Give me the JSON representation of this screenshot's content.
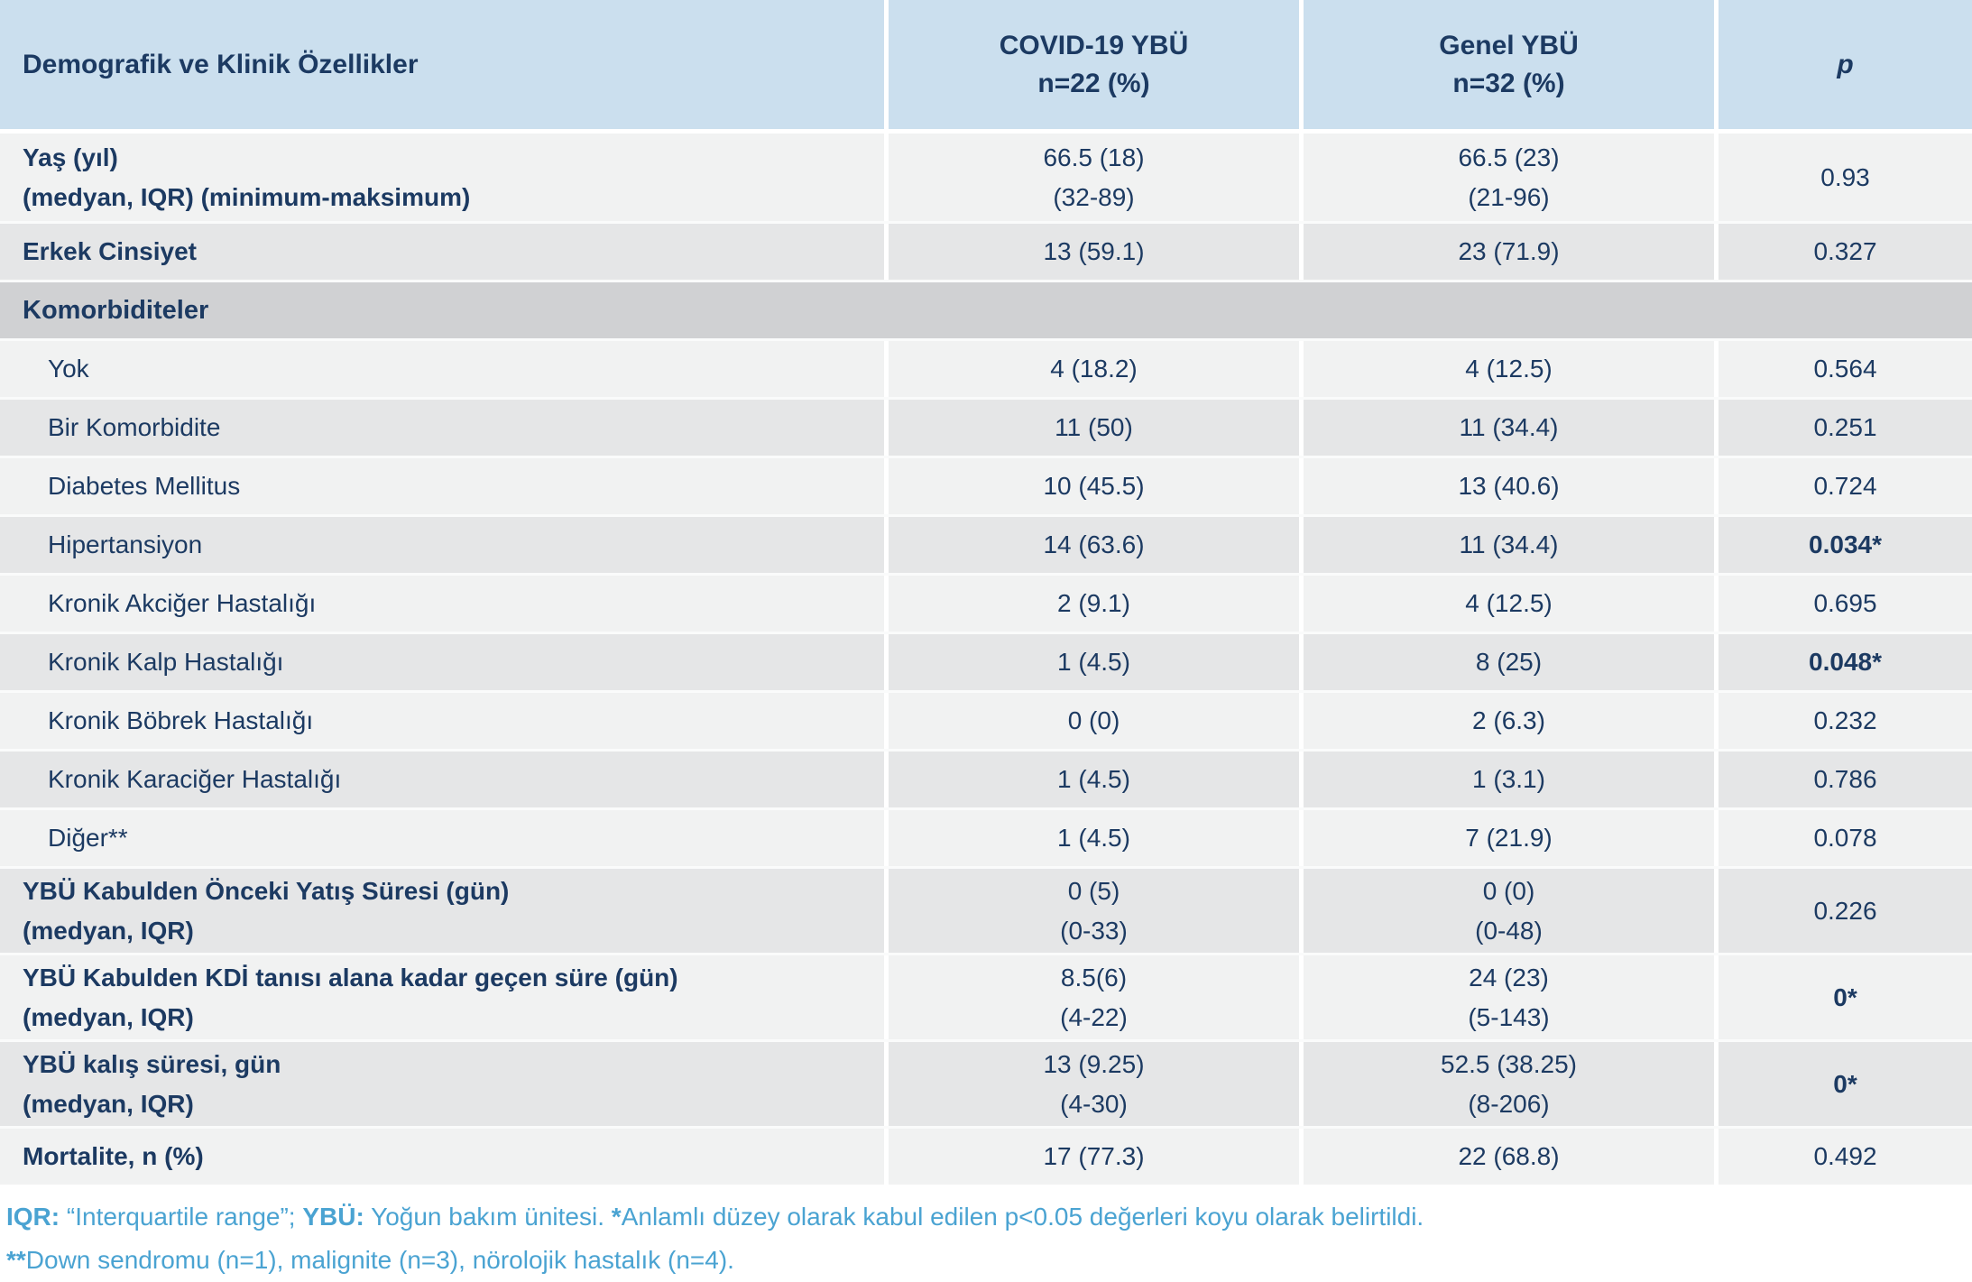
{
  "header": {
    "col1": "Demografik ve Klinik Özellikler",
    "col2_lines": [
      "COVID-19 YBÜ",
      "n=22 (%)"
    ],
    "col3_lines": [
      "Genel YBÜ",
      "n=32 (%)"
    ],
    "col4": "p"
  },
  "rows": [
    {
      "label": [
        "Yaş (yıl)",
        "(medyan, IQR) (minimum-maksimum)"
      ],
      "bold_label": true,
      "indent": false,
      "tall": true,
      "covid": [
        "66.5 (18)",
        "(32-89)"
      ],
      "genel": [
        "66.5 (23)",
        "(21-96)"
      ],
      "p": "0.93",
      "p_bold": false,
      "shade": "light"
    },
    {
      "label": [
        "Erkek Cinsiyet"
      ],
      "bold_label": true,
      "indent": false,
      "tall": false,
      "covid": [
        "13 (59.1)"
      ],
      "genel": [
        "23 (71.9)"
      ],
      "p": "0.327",
      "p_bold": false,
      "shade": "dark"
    },
    {
      "section": true,
      "label": [
        "Komorbiditeler"
      ]
    },
    {
      "label": [
        "Yok"
      ],
      "bold_label": false,
      "indent": true,
      "tall": false,
      "covid": [
        "4 (18.2)"
      ],
      "genel": [
        "4 (12.5)"
      ],
      "p": "0.564",
      "p_bold": false,
      "shade": "light"
    },
    {
      "label": [
        "Bir Komorbidite"
      ],
      "bold_label": false,
      "indent": true,
      "tall": false,
      "covid": [
        "11 (50)"
      ],
      "genel": [
        "11 (34.4)"
      ],
      "p": "0.251",
      "p_bold": false,
      "shade": "dark"
    },
    {
      "label": [
        "Diabetes Mellitus"
      ],
      "bold_label": false,
      "indent": true,
      "tall": false,
      "covid": [
        "10 (45.5)"
      ],
      "genel": [
        "13 (40.6)"
      ],
      "p": "0.724",
      "p_bold": false,
      "shade": "light"
    },
    {
      "label": [
        "Hipertansiyon"
      ],
      "bold_label": false,
      "indent": true,
      "tall": false,
      "covid": [
        "14 (63.6)"
      ],
      "genel": [
        "11 (34.4)"
      ],
      "p": "0.034*",
      "p_bold": true,
      "shade": "dark"
    },
    {
      "label": [
        "Kronik Akciğer Hastalığı"
      ],
      "bold_label": false,
      "indent": true,
      "tall": false,
      "covid": [
        "2 (9.1)"
      ],
      "genel": [
        "4 (12.5)"
      ],
      "p": "0.695",
      "p_bold": false,
      "shade": "light"
    },
    {
      "label": [
        "Kronik Kalp Hastalığı"
      ],
      "bold_label": false,
      "indent": true,
      "tall": false,
      "covid": [
        "1 (4.5)"
      ],
      "genel": [
        "8 (25)"
      ],
      "p": "0.048*",
      "p_bold": true,
      "shade": "dark"
    },
    {
      "label": [
        "Kronik Böbrek Hastalığı"
      ],
      "bold_label": false,
      "indent": true,
      "tall": false,
      "covid": [
        "0 (0)"
      ],
      "genel": [
        "2 (6.3)"
      ],
      "p": "0.232",
      "p_bold": false,
      "shade": "light"
    },
    {
      "label": [
        "Kronik Karaciğer Hastalığı"
      ],
      "bold_label": false,
      "indent": true,
      "tall": false,
      "covid": [
        "1 (4.5)"
      ],
      "genel": [
        "1 (3.1)"
      ],
      "p": "0.786",
      "p_bold": false,
      "shade": "dark"
    },
    {
      "label": [
        "Diğer**"
      ],
      "bold_label": false,
      "indent": true,
      "tall": false,
      "covid": [
        "1 (4.5)"
      ],
      "genel": [
        "7 (21.9)"
      ],
      "p": "0.078",
      "p_bold": false,
      "shade": "light"
    },
    {
      "label": [
        "YBÜ Kabulden Önceki Yatış Süresi (gün)",
        "(medyan, IQR)"
      ],
      "bold_label": true,
      "indent": false,
      "tall": true,
      "covid": [
        "0 (5)",
        "(0-33)"
      ],
      "genel": [
        "0 (0)",
        "(0-48)"
      ],
      "p": "0.226",
      "p_bold": false,
      "shade": "dark"
    },
    {
      "label": [
        "YBÜ Kabulden KDİ tanısı alana kadar geçen süre (gün)",
        "(medyan, IQR)"
      ],
      "bold_label": true,
      "indent": false,
      "tall": true,
      "covid": [
        "8.5(6)",
        "(4-22)"
      ],
      "genel": [
        "24 (23)",
        "(5-143)"
      ],
      "p": "0*",
      "p_bold": true,
      "shade": "light"
    },
    {
      "label": [
        "YBÜ kalış süresi, gün",
        "(medyan, IQR)"
      ],
      "bold_label": true,
      "indent": false,
      "tall": true,
      "covid": [
        "13 (9.25)",
        "(4-30)"
      ],
      "genel": [
        "52.5 (38.25)",
        "(8-206)"
      ],
      "p": "0*",
      "p_bold": true,
      "shade": "dark"
    },
    {
      "label": [
        "Mortalite, n (%)"
      ],
      "bold_label": true,
      "indent": false,
      "tall": false,
      "covid": [
        "17 (77.3)"
      ],
      "genel": [
        "22 (68.8)"
      ],
      "p": "0.492",
      "p_bold": false,
      "shade": "light"
    }
  ],
  "footnotes": {
    "line1": [
      {
        "text": "IQR:",
        "bold": true
      },
      {
        "text": " “Interquartile range”; ",
        "bold": false
      },
      {
        "text": "YBÜ:",
        "bold": true
      },
      {
        "text": " Yoğun bakım ünitesi. ",
        "bold": false
      },
      {
        "text": "*",
        "bold": true
      },
      {
        "text": "Anlamlı düzey olarak kabul edilen p<0.05  değerleri koyu olarak belirtildi.",
        "bold": false
      }
    ],
    "line2": [
      {
        "text": "**",
        "bold": true
      },
      {
        "text": "Down sendromu (n=1), malignite (n=3), nörolojik hastalık (n=4).",
        "bold": false
      }
    ]
  },
  "colors": {
    "header_bg": "#cbdfee",
    "row_light": "#f1f2f2",
    "row_dark": "#e5e6e7",
    "section_bg": "#d0d1d3",
    "text_navy": "#1c3a62",
    "footnote_blue": "#4aa3d2",
    "divider": "#ffffff"
  }
}
